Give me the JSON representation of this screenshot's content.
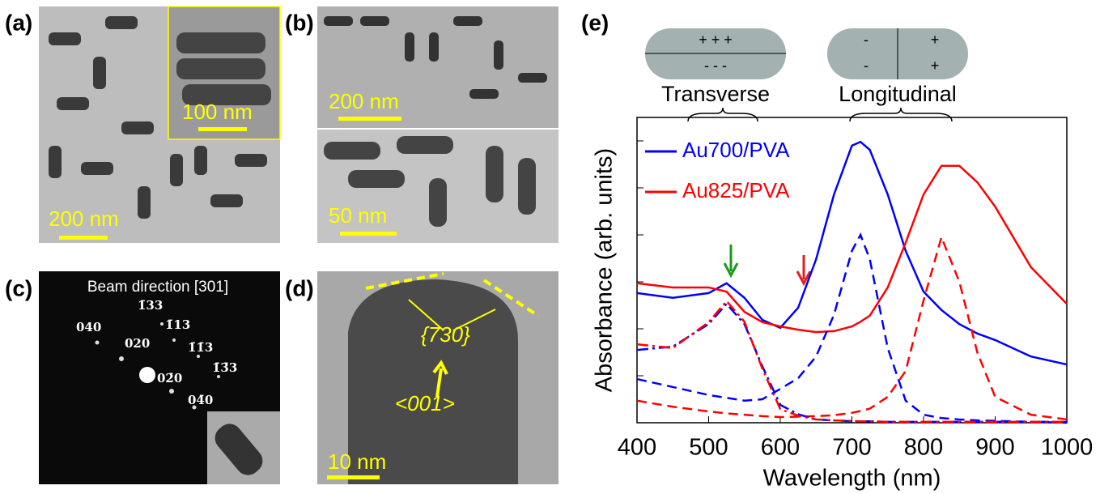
{
  "figure": {
    "a": {
      "label": "(a)",
      "scale": "200 nm",
      "inset_scale": "100 nm"
    },
    "b": {
      "label": "(b)",
      "scale_top": "200 nm",
      "scale_bottom": "50 nm"
    },
    "c": {
      "label": "(c)",
      "title": "Beam direction [301]",
      "spots": [
        "1̄33",
        "040",
        "1̄13",
        "020",
        "1̄1̄3",
        "02̄0",
        "1̄3̄3",
        "04̄0"
      ]
    },
    "d": {
      "label": "(d)",
      "facet": "{730}",
      "direction": "<001>",
      "scale": "10 nm"
    }
  },
  "chart_data": {
    "type": "line",
    "panel_label": "(e)",
    "modes": {
      "transverse": "Transverse",
      "longitudinal": "Longitudinal",
      "transverse_top": "+ + +",
      "transverse_bottom": "- - -",
      "longitudinal_left_top": "-",
      "longitudinal_left_bottom": "-",
      "longitudinal_right_top": "+",
      "longitudinal_right_bottom": "+"
    },
    "x_label": "Wavelength (nm)",
    "y_label": "Absorbance (arb. units)",
    "x": [
      400,
      450,
      500,
      525,
      550,
      575,
      600,
      625,
      650,
      675,
      700,
      712,
      725,
      750,
      775,
      800,
      825,
      850,
      875,
      900,
      950,
      1000
    ],
    "xlim": [
      400,
      1000
    ],
    "xticks": [
      400,
      500,
      600,
      700,
      800,
      900,
      1000
    ],
    "ylim": [
      0,
      6.5
    ],
    "yticks": [
      0,
      1,
      2,
      3,
      4,
      5,
      6
    ],
    "series": [
      {
        "name": "Au700/PVA",
        "color": "#0000ff",
        "dash": "solid",
        "values": [
          2.76,
          2.66,
          2.76,
          2.97,
          2.66,
          2.19,
          2.02,
          2.45,
          3.48,
          4.86,
          5.9,
          5.98,
          5.81,
          4.86,
          3.66,
          2.79,
          2.4,
          2.1,
          1.9,
          1.76,
          1.41,
          1.24
        ]
      },
      {
        "name": "Au825/PVA",
        "color": "#ff0000",
        "dash": "solid",
        "values": [
          2.97,
          2.88,
          2.88,
          2.79,
          2.36,
          2.14,
          2.05,
          1.98,
          1.93,
          1.95,
          2.05,
          2.15,
          2.28,
          2.88,
          3.83,
          4.86,
          5.47,
          5.47,
          5.12,
          4.6,
          3.31,
          2.53
        ]
      },
      {
        "color": "#0000ff",
        "dash": "dashed",
        "values": [
          0.93,
          0.76,
          0.59,
          0.53,
          0.47,
          0.5,
          0.72,
          0.95,
          1.41,
          2.3,
          3.66,
          4.0,
          3.48,
          1.59,
          0.47,
          0.17,
          0.1,
          0.07,
          0.05,
          0.04,
          0.02,
          0.0
        ]
      },
      {
        "color": "#ff0000",
        "dash": "dashed",
        "values": [
          0.47,
          0.34,
          0.24,
          0.2,
          0.17,
          0.14,
          0.12,
          0.13,
          0.14,
          0.16,
          0.21,
          0.25,
          0.3,
          0.55,
          1.1,
          2.6,
          3.95,
          3.0,
          1.5,
          0.55,
          0.17,
          0.07
        ]
      },
      {
        "color": "#0000ff",
        "dash": "dashdot",
        "values": [
          1.55,
          1.62,
          2.1,
          2.53,
          2.1,
          1.2,
          0.38,
          0.18,
          0.07,
          0.05,
          0.03,
          0.03,
          0.03,
          0.02,
          0.02,
          0.02,
          0.02,
          0.02,
          0.02,
          0.02,
          0.02,
          0.02
        ]
      },
      {
        "color": "#ff0000",
        "dash": "dashdot",
        "values": [
          1.67,
          1.59,
          2.14,
          2.59,
          2.15,
          1.15,
          0.29,
          0.15,
          0.07,
          0.05,
          0.04,
          0.03,
          0.03,
          0.02,
          0.02,
          0.02,
          0.02,
          0.02,
          0.02,
          0.02,
          0.02,
          0.02
        ]
      }
    ]
  }
}
